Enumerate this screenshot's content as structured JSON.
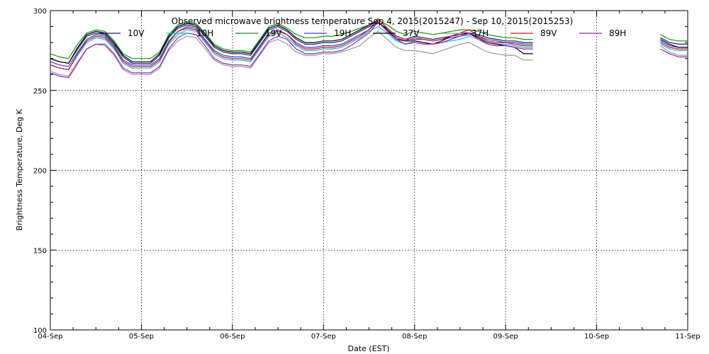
{
  "chart_data": {
    "type": "line",
    "title": "Observed microwave brightness temperature Sep 4, 2015(2015247) - Sep 10, 2015(2015253)",
    "xlabel": "Date (EST)",
    "ylabel": "Brightness Temperature, Deg K",
    "x_tick_labels": [
      "04-Sep",
      "05-Sep",
      "06-Sep",
      "07-Sep",
      "08-Sep",
      "09-Sep",
      "10-Sep",
      "11-Sep"
    ],
    "x_range_days": [
      0,
      7
    ],
    "ylim": [
      100,
      300
    ],
    "y_ticks": [
      100,
      150,
      200,
      250,
      300
    ],
    "grid": true,
    "legend_placement": "top",
    "x_days": [
      0.0,
      0.1,
      0.2,
      0.3,
      0.4,
      0.5,
      0.6,
      0.7,
      0.8,
      0.9,
      1.0,
      1.1,
      1.2,
      1.3,
      1.4,
      1.5,
      1.6,
      1.7,
      1.8,
      1.9,
      2.0,
      2.1,
      2.2,
      2.3,
      2.4,
      2.5,
      2.6,
      2.7,
      2.8,
      2.9,
      3.0,
      3.1,
      3.2,
      3.3,
      3.4,
      3.5,
      3.6,
      3.7,
      3.8,
      3.9,
      4.0,
      4.1,
      4.2,
      4.3,
      4.4,
      4.5,
      4.6,
      4.7,
      4.8,
      4.9,
      5.0,
      5.1,
      5.2,
      5.3,
      6.7,
      6.8,
      6.9,
      7.0
    ],
    "series": [
      {
        "name": "10V",
        "color": "#1a1a80",
        "values": [
          270,
          268,
          267,
          276,
          284,
          286,
          285,
          279,
          271,
          267,
          267,
          267,
          272,
          283,
          289,
          291,
          290,
          284,
          277,
          274,
          273,
          273,
          272,
          280,
          288,
          290,
          287,
          282,
          279,
          279,
          280,
          280,
          281,
          284,
          287,
          290,
          292,
          289,
          284,
          282,
          284,
          283,
          282,
          283,
          284,
          285,
          286,
          285,
          283,
          282,
          281,
          281,
          280,
          280,
          283,
          280,
          279,
          279
        ]
      },
      {
        "name": "10H",
        "color": "#00c8c8",
        "values": [
          266,
          264,
          263,
          272,
          280,
          283,
          282,
          276,
          267,
          264,
          264,
          264,
          268,
          279,
          285,
          288,
          287,
          280,
          273,
          270,
          269,
          269,
          268,
          276,
          284,
          286,
          283,
          278,
          275,
          275,
          276,
          276,
          277,
          280,
          283,
          287,
          290,
          286,
          281,
          279,
          281,
          280,
          279,
          280,
          281,
          282,
          284,
          282,
          280,
          279,
          279,
          278,
          277,
          277,
          279,
          276,
          275,
          275
        ]
      },
      {
        "name": "19V",
        "color": "#109810",
        "values": [
          273,
          271,
          270,
          279,
          286,
          288,
          287,
          281,
          273,
          270,
          270,
          270,
          274,
          285,
          291,
          293,
          292,
          286,
          279,
          276,
          275,
          275,
          274,
          282,
          290,
          292,
          289,
          285,
          283,
          283,
          284,
          284,
          285,
          287,
          289,
          291,
          294,
          291,
          287,
          285,
          287,
          286,
          285,
          286,
          287,
          288,
          288,
          287,
          285,
          284,
          283,
          283,
          282,
          282,
          285,
          282,
          281,
          281
        ]
      },
      {
        "name": "19H",
        "color": "#3a3aff",
        "values": [
          268,
          266,
          265,
          274,
          282,
          285,
          284,
          278,
          269,
          266,
          266,
          266,
          270,
          281,
          287,
          290,
          289,
          282,
          275,
          272,
          271,
          271,
          270,
          278,
          286,
          288,
          285,
          280,
          277,
          277,
          278,
          278,
          279,
          282,
          285,
          288,
          293,
          288,
          283,
          281,
          283,
          282,
          281,
          282,
          283,
          284,
          285,
          284,
          282,
          281,
          280,
          280,
          279,
          279,
          281,
          278,
          277,
          277
        ]
      },
      {
        "name": "37V",
        "color": "#000000",
        "values": [
          270,
          268,
          267,
          277,
          285,
          287,
          286,
          280,
          272,
          268,
          268,
          268,
          273,
          284,
          290,
          292,
          291,
          285,
          278,
          275,
          274,
          274,
          273,
          281,
          289,
          291,
          288,
          283,
          280,
          280,
          281,
          281,
          282,
          285,
          288,
          291,
          293,
          288,
          282,
          281,
          281,
          280,
          279,
          281,
          284,
          286,
          286,
          283,
          280,
          279,
          278,
          277,
          273,
          273,
          282,
          279,
          277,
          277
        ]
      },
      {
        "name": "37H",
        "color": "#999999",
        "values": [
          262,
          260,
          259,
          268,
          276,
          279,
          278,
          272,
          263,
          260,
          260,
          260,
          264,
          275,
          281,
          284,
          283,
          276,
          269,
          266,
          265,
          265,
          264,
          272,
          280,
          282,
          279,
          274,
          272,
          272,
          273,
          273,
          274,
          276,
          278,
          283,
          287,
          282,
          277,
          275,
          275,
          274,
          273,
          275,
          277,
          279,
          280,
          277,
          274,
          273,
          272,
          272,
          269,
          269,
          278,
          274,
          272,
          272
        ]
      },
      {
        "name": "89V",
        "color": "#e01010",
        "values": [
          266,
          264,
          263,
          273,
          281,
          284,
          283,
          277,
          268,
          265,
          265,
          265,
          269,
          280,
          287,
          289,
          288,
          281,
          274,
          271,
          270,
          270,
          269,
          277,
          285,
          287,
          285,
          279,
          276,
          276,
          277,
          277,
          278,
          281,
          284,
          288,
          295,
          289,
          284,
          282,
          282,
          282,
          281,
          282,
          284,
          286,
          288,
          284,
          281,
          280,
          280,
          279,
          278,
          278,
          280,
          277,
          276,
          276
        ]
      },
      {
        "name": "89H",
        "color": "#a020c0",
        "values": [
          261,
          259,
          258,
          267,
          276,
          279,
          279,
          273,
          264,
          261,
          261,
          261,
          265,
          276,
          283,
          286,
          285,
          278,
          270,
          267,
          266,
          266,
          265,
          273,
          281,
          284,
          282,
          276,
          273,
          273,
          274,
          274,
          275,
          278,
          282,
          286,
          293,
          287,
          282,
          279,
          280,
          279,
          279,
          280,
          282,
          284,
          286,
          282,
          279,
          278,
          278,
          277,
          276,
          276,
          276,
          273,
          271,
          271
        ]
      }
    ]
  }
}
